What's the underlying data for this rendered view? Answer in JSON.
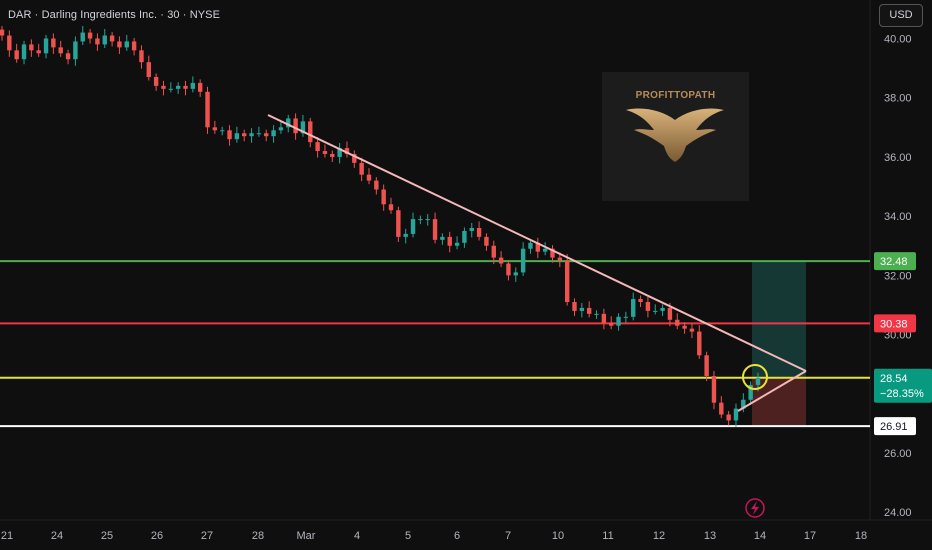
{
  "header": {
    "symbol_line": "DAR · Darling Ingredients Inc. · 30 · NYSE"
  },
  "toolbar": {
    "currency": "USD"
  },
  "watermark": {
    "text": "PROFITTOPATH"
  },
  "icons": {
    "replay": "lightning-icon"
  },
  "colors": {
    "background": "#0f0f0f",
    "up": "#26a69a",
    "down": "#ef5350",
    "target_line": "#4caf50",
    "resistance_line": "#f23645",
    "current_line": "#e8e23a",
    "support_line": "#ffffff",
    "trendline": "#f4b8b8"
  },
  "chart_data": {
    "type": "candlestick",
    "y_axis": {
      "min": 23.4,
      "max": 41.3,
      "ticks": [
        "40.00",
        "38.00",
        "36.00",
        "34.00",
        "32.00",
        "30.00",
        "28.00",
        "26.00",
        "24.00"
      ]
    },
    "x_axis": {
      "ticks": [
        "21",
        "24",
        "25",
        "26",
        "27",
        "28",
        "Mar",
        "4",
        "5",
        "6",
        "7",
        "10",
        "11",
        "12",
        "13",
        "14",
        "17",
        "18"
      ]
    },
    "price_levels": [
      {
        "name": "target",
        "value": 32.48,
        "label": "32.48"
      },
      {
        "name": "resistance",
        "value": 30.38,
        "label": "30.38"
      },
      {
        "name": "current",
        "value": 28.54,
        "label": "28.54",
        "change": "−28.35%"
      },
      {
        "name": "support",
        "value": 26.91,
        "label": "26.91"
      }
    ],
    "trendline": {
      "from": {
        "date": "28",
        "price": 37.4
      },
      "to": {
        "date": "14-17",
        "price": 28.6
      }
    },
    "position": {
      "entry": 28.54,
      "target": 32.48,
      "stop": 26.91
    },
    "close_series": [
      40.1,
      39.6,
      39.3,
      39.8,
      39.6,
      39.5,
      40.0,
      39.7,
      39.5,
      39.3,
      39.9,
      40.2,
      40.0,
      39.8,
      40.1,
      39.9,
      39.7,
      39.9,
      39.6,
      39.2,
      38.7,
      38.4,
      38.3,
      38.3,
      38.4,
      38.3,
      38.5,
      38.2,
      37.0,
      36.9,
      36.9,
      36.6,
      36.8,
      36.7,
      36.8,
      36.8,
      36.7,
      36.9,
      37.0,
      37.3,
      36.8,
      37.2,
      36.5,
      36.2,
      36.1,
      36.0,
      36.3,
      36.1,
      35.8,
      35.4,
      35.2,
      34.9,
      34.4,
      34.2,
      33.3,
      33.4,
      33.9,
      33.9,
      33.9,
      33.2,
      33.3,
      33.0,
      33.1,
      33.5,
      33.6,
      33.3,
      33.0,
      32.6,
      32.4,
      32.0,
      32.1,
      32.9,
      33.1,
      32.8,
      32.9,
      32.6,
      32.5,
      31.1,
      30.8,
      30.9,
      30.7,
      30.7,
      30.4,
      30.3,
      30.6,
      30.6,
      31.2,
      31.1,
      30.8,
      30.8,
      30.9,
      30.5,
      30.3,
      30.2,
      30.1,
      29.3,
      28.6,
      27.7,
      27.3,
      27.1,
      27.5,
      27.8,
      28.3,
      28.54
    ],
    "note_marker": "circle around current price near 14"
  }
}
